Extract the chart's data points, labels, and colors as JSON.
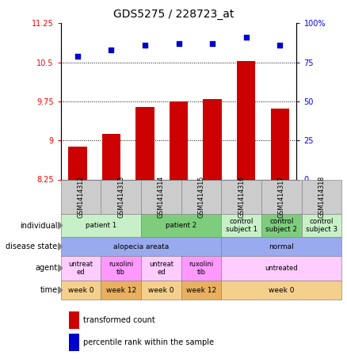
{
  "title": "GDS5275 / 228723_at",
  "samples": [
    "GSM1414312",
    "GSM1414313",
    "GSM1414314",
    "GSM1414315",
    "GSM1414316",
    "GSM1414317",
    "GSM1414318"
  ],
  "bar_values": [
    8.88,
    9.12,
    9.65,
    9.75,
    9.8,
    10.52,
    9.62
  ],
  "scatter_values": [
    79,
    83,
    86,
    87,
    87,
    91,
    86
  ],
  "ylim_left": [
    8.25,
    11.25
  ],
  "ylim_right": [
    0,
    100
  ],
  "yticks_left": [
    8.25,
    9.0,
    9.75,
    10.5,
    11.25
  ],
  "yticks_left_labels": [
    "8.25",
    "9",
    "9.75",
    "10.5",
    "11.25"
  ],
  "yticks_right": [
    0,
    25,
    50,
    75,
    100
  ],
  "yticks_right_labels": [
    "0",
    "25",
    "50",
    "75",
    "100%"
  ],
  "bar_color": "#cc0000",
  "scatter_color": "#0000cc",
  "hline_values": [
    9.0,
    9.75,
    10.5
  ],
  "individual_cells": [
    {
      "cols": [
        0,
        1
      ],
      "text": "patient 1",
      "color": "#c8f0c8"
    },
    {
      "cols": [
        2,
        3
      ],
      "text": "patient 2",
      "color": "#7dcd7d"
    },
    {
      "cols": [
        4
      ],
      "text": "control\nsubject 1",
      "color": "#c8f0c8"
    },
    {
      "cols": [
        5
      ],
      "text": "control\nsubject 2",
      "color": "#7dcd7d"
    },
    {
      "cols": [
        6
      ],
      "text": "control\nsubject 3",
      "color": "#c8f0c8"
    }
  ],
  "disease_cells": [
    {
      "cols": [
        0,
        1,
        2,
        3
      ],
      "text": "alopecia areata",
      "color": "#99aaee"
    },
    {
      "cols": [
        4,
        5,
        6
      ],
      "text": "normal",
      "color": "#99aaee"
    }
  ],
  "agent_cells": [
    {
      "cols": [
        0
      ],
      "text": "untreat\ned",
      "color": "#ffccff"
    },
    {
      "cols": [
        1
      ],
      "text": "ruxolini\ntib",
      "color": "#ff99ff"
    },
    {
      "cols": [
        2
      ],
      "text": "untreat\ned",
      "color": "#ffccff"
    },
    {
      "cols": [
        3
      ],
      "text": "ruxolini\ntib",
      "color": "#ff99ff"
    },
    {
      "cols": [
        4,
        5,
        6
      ],
      "text": "untreated",
      "color": "#ffccff"
    }
  ],
  "time_cells": [
    {
      "cols": [
        0
      ],
      "text": "week 0",
      "color": "#f5d08c"
    },
    {
      "cols": [
        1
      ],
      "text": "week 12",
      "color": "#e8b060"
    },
    {
      "cols": [
        2
      ],
      "text": "week 0",
      "color": "#f5d08c"
    },
    {
      "cols": [
        3
      ],
      "text": "week 12",
      "color": "#e8b060"
    },
    {
      "cols": [
        4,
        5,
        6
      ],
      "text": "week 0",
      "color": "#f5d08c"
    }
  ],
  "sample_header_color": "#cccccc",
  "legend_red_label": "transformed count",
  "legend_blue_label": "percentile rank within the sample"
}
